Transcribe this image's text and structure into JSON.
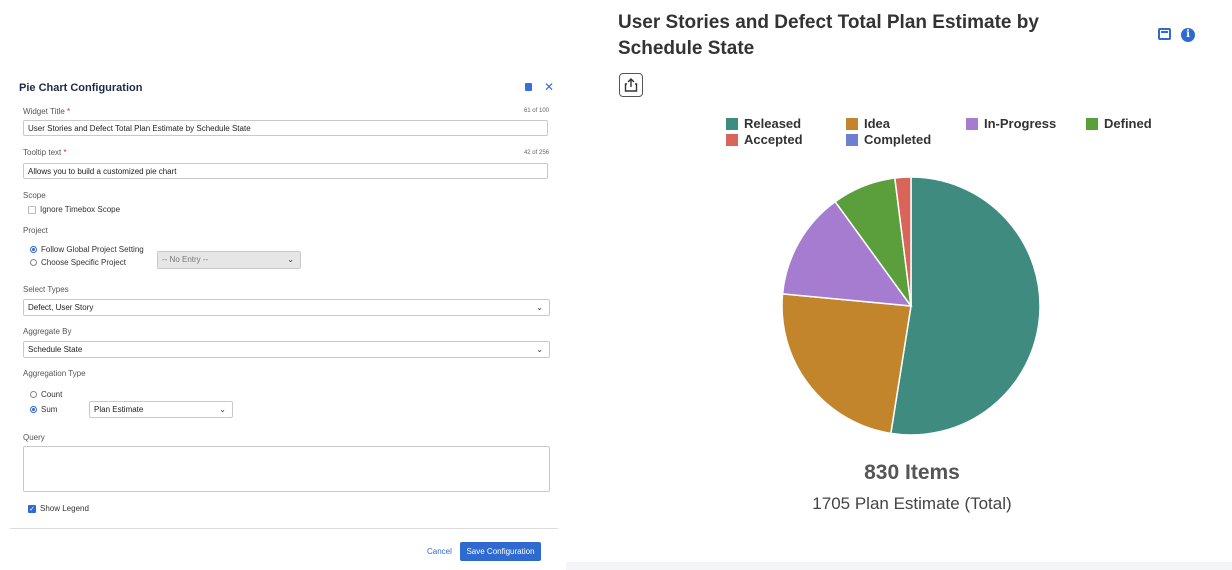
{
  "config": {
    "title": "Pie Chart Configuration",
    "widget_title_label": "Widget Title",
    "required_mark": "*",
    "widget_title_counter": "61 of 100",
    "widget_title_value": "User Stories and Defect Total Plan Estimate by Schedule State",
    "tooltip_label": "Tooltip text",
    "tooltip_counter": "42 of 256",
    "tooltip_value": "Allows you to build a customized pie chart",
    "scope_label": "Scope",
    "ignore_timebox_label": "Ignore Timebox Scope",
    "project_label": "Project",
    "follow_global_label": "Follow Global Project Setting",
    "choose_specific_label": "Choose Specific Project",
    "no_entry_value": "-- No Entry --",
    "select_types_label": "Select Types",
    "select_types_value": "Defect, User Story",
    "aggregate_by_label": "Aggregate By",
    "aggregate_by_value": "Schedule State",
    "aggregation_type_label": "Aggregation Type",
    "count_label": "Count",
    "sum_label": "Sum",
    "sum_field_value": "Plan Estimate",
    "query_label": "Query",
    "show_legend_label": "Show Legend",
    "cancel_label": "Cancel",
    "save_label": "Save Configuration"
  },
  "widget": {
    "title": "User Stories and Defect Total Plan Estimate by Schedule State",
    "items_text": "830 Items",
    "total_text": "1705 Plan Estimate (Total)"
  },
  "chart_data": {
    "type": "pie",
    "legend_position": "top",
    "series": [
      {
        "name": "Released",
        "value": 52.5,
        "color": "#3f8b80"
      },
      {
        "name": "Idea",
        "value": 24.0,
        "color": "#c2852c"
      },
      {
        "name": "In-Progress",
        "value": 13.5,
        "color": "#a57ccf"
      },
      {
        "name": "Defined",
        "value": 8.0,
        "color": "#5b9e3c"
      },
      {
        "name": "Accepted",
        "value": 2.0,
        "color": "#d9655a"
      },
      {
        "name": "Completed",
        "value": 0,
        "color": "#6f7fd0"
      }
    ]
  }
}
